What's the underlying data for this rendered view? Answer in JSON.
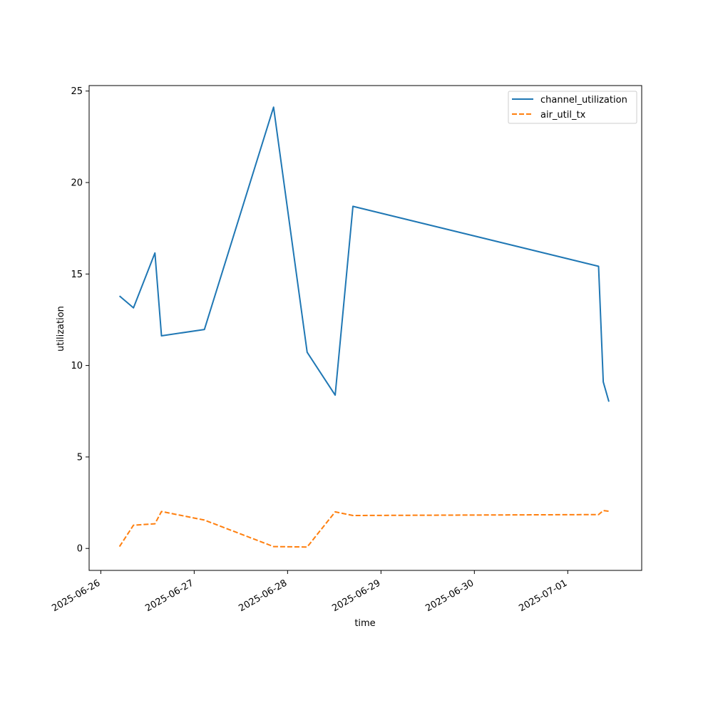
{
  "chart_data": {
    "type": "line",
    "xlabel": "time",
    "ylabel": "utilization",
    "xlim": [
      "2025-06-25T21:00",
      "2025-07-01T19:00"
    ],
    "ylim": [
      -1.2,
      25.3
    ],
    "x_ticks": [
      "2025-06-26",
      "2025-06-27",
      "2025-06-28",
      "2025-06-29",
      "2025-06-30",
      "2025-07-01"
    ],
    "y_ticks": [
      0,
      5,
      10,
      15,
      20,
      25
    ],
    "legend_position": "top-right",
    "grid": false,
    "series": [
      {
        "name": "channel_utilization",
        "color": "#1f77b4",
        "dash": "solid",
        "points": [
          [
            "2025-06-26T04:48",
            13.8
          ],
          [
            "2025-06-26T08:24",
            13.15
          ],
          [
            "2025-06-26T13:55",
            16.15
          ],
          [
            "2025-06-26T15:36",
            11.62
          ],
          [
            "2025-06-27T02:38",
            11.97
          ],
          [
            "2025-06-27T20:24",
            24.12
          ],
          [
            "2025-06-28T05:02",
            10.72
          ],
          [
            "2025-06-28T12:14",
            8.38
          ],
          [
            "2025-06-28T16:48",
            18.7
          ],
          [
            "2025-07-01T07:55",
            15.42
          ],
          [
            "2025-07-01T09:07",
            9.1
          ],
          [
            "2025-07-01T10:34",
            8.02
          ]
        ]
      },
      {
        "name": "air_util_tx",
        "color": "#ff7f0e",
        "dash": "dashed",
        "points": [
          [
            "2025-06-26T04:48",
            0.1
          ],
          [
            "2025-06-26T08:24",
            1.27
          ],
          [
            "2025-06-26T13:55",
            1.35
          ],
          [
            "2025-06-26T15:36",
            2.02
          ],
          [
            "2025-06-27T02:38",
            1.55
          ],
          [
            "2025-06-27T20:24",
            0.1
          ],
          [
            "2025-06-28T05:02",
            0.08
          ],
          [
            "2025-06-28T12:14",
            2.0
          ],
          [
            "2025-06-28T16:48",
            1.8
          ],
          [
            "2025-07-01T07:55",
            1.85
          ],
          [
            "2025-07-01T09:07",
            2.07
          ],
          [
            "2025-07-01T10:34",
            2.03
          ]
        ]
      }
    ]
  }
}
